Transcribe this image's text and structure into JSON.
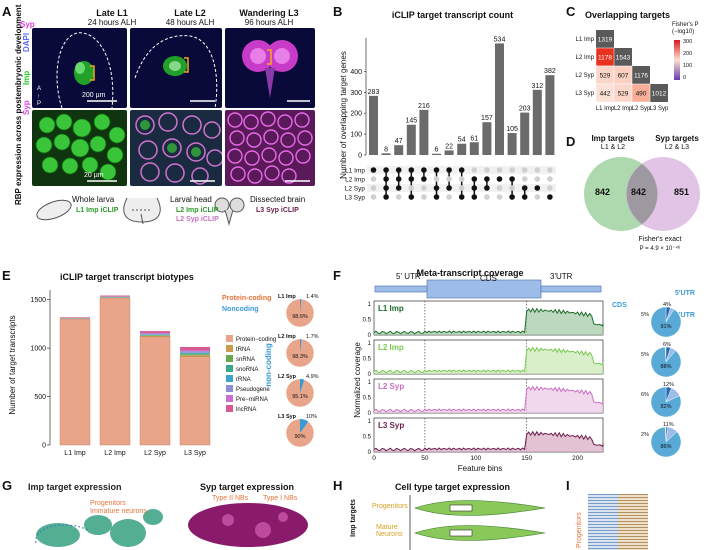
{
  "panel_letters": {
    "a": "A",
    "b": "B",
    "c": "C",
    "d": "D",
    "e": "E",
    "f": "F",
    "g": "G",
    "h": "H",
    "i": "I"
  },
  "panelA": {
    "side_label": "RBP expression across postembryonic development",
    "col_titles": [
      {
        "t": "Late L1",
        "s": "24 hours ALH"
      },
      {
        "t": "Late L2",
        "s": "48 hours ALH"
      },
      {
        "t": "Wandering L3",
        "s": "96 hours ALH"
      }
    ],
    "row_labels": {
      "imp": "Imp",
      "syp": "Syp",
      "dapi": "DAPI"
    },
    "axis": {
      "a": "A",
      "p": "P"
    },
    "scale1": "200 µm",
    "scale2": "20 µm",
    "schem": [
      {
        "name": "Whole larva",
        "iclip": [
          "L1 Imp iCLIP"
        ]
      },
      {
        "name": "Larval head",
        "iclip": [
          "L2 Imp iCLIP",
          "L2 Syp iCLIP"
        ]
      },
      {
        "name": "Dissected brain",
        "iclip": [
          "L3 Syp iCLIP"
        ]
      }
    ]
  },
  "panelB": {
    "title": "iCLIP target transcript count",
    "ylabel": "Number of overlapping target genes",
    "set_labels": [
      "L1 Imp",
      "L2 Imp",
      "L2 Syp",
      "L3 Syp"
    ],
    "chart_data": {
      "type": "bar",
      "title": "iCLIP target transcript count",
      "ylabel": "Number of overlapping target genes",
      "ylim": [
        0,
        560
      ],
      "yticks": [
        0,
        100,
        200,
        300,
        400
      ],
      "values": [
        283,
        8,
        47,
        145,
        216,
        6,
        22,
        54,
        61,
        157,
        534,
        105,
        203,
        312,
        382
      ],
      "membership": [
        [
          0
        ],
        [
          0,
          1,
          2,
          3
        ],
        [
          0,
          1,
          2
        ],
        [
          0,
          1,
          3
        ],
        [
          0,
          1
        ],
        [
          0,
          2,
          3
        ],
        [
          0,
          2
        ],
        [
          0,
          3
        ],
        [
          1,
          2,
          3
        ],
        [
          1,
          2
        ],
        [
          1
        ],
        [
          1,
          3
        ],
        [
          2,
          3
        ],
        [
          2
        ],
        [
          3
        ]
      ]
    }
  },
  "panelC": {
    "title": "Overlapping targets",
    "legend_title": "Fisher's P",
    "legend_sub": "(−log10)",
    "legend_ticks": [
      "300",
      "200",
      "100",
      "0"
    ],
    "labels": [
      "L1 Imp",
      "L2 Imp",
      "L2 Syp",
      "L3 Syp"
    ],
    "chart_data": {
      "type": "heatmap",
      "diag": [
        1319,
        1543,
        1176,
        1012
      ],
      "lower": [
        [
          1,
          0,
          1178,
          "#e8321f"
        ],
        [
          2,
          0,
          529,
          "#fbd5c7"
        ],
        [
          2,
          1,
          607,
          "#fbd0c0"
        ],
        [
          3,
          0,
          442,
          "#fce1d6"
        ],
        [
          3,
          1,
          529,
          "#fbd5c7"
        ],
        [
          3,
          2,
          490,
          "#f8ae96"
        ]
      ]
    }
  },
  "panelD": {
    "left_title": "Imp targets",
    "left_sub": "L1 & L2",
    "right_title": "Syp targets",
    "right_sub": "L2 & L3",
    "values": [
      "842",
      "842",
      "851"
    ],
    "test": "Fisher's exact",
    "pval": "P = 4.9 × 10⁻⁴⁶",
    "chart_data": {
      "type": "venn",
      "left_only": 842,
      "both": 842,
      "right_only": 851
    }
  },
  "panelE": {
    "title": "iCLIP target transcript biotypes",
    "ylabel": "Number of target transcripts",
    "noncoding_label": "non-coding",
    "pie_labels": {
      "pc": "Protein-coding",
      "nc": "Noncoding"
    },
    "legend": [
      {
        "name": "Protein−coding",
        "color": "#e8a58a"
      },
      {
        "name": "tRNA",
        "color": "#c99a4a"
      },
      {
        "name": "snRNA",
        "color": "#6aa84f"
      },
      {
        "name": "snoRNA",
        "color": "#3aa88a"
      },
      {
        "name": "rRNA",
        "color": "#3aa5c8"
      },
      {
        "name": "Pseudogene",
        "color": "#8c8fd8"
      },
      {
        "name": "Pre−miRNA",
        "color": "#c86fd0"
      },
      {
        "name": "lncRNA",
        "color": "#d85a95"
      }
    ],
    "pies": [
      {
        "label": "L1 Imp",
        "nc": "1.4%",
        "pc": "98.6%",
        "nc_val": 1.4
      },
      {
        "label": "L2 Imp",
        "nc": "1.7%",
        "pc": "98.3%",
        "nc_val": 1.7
      },
      {
        "label": "L2 Syp",
        "nc": "4.9%",
        "pc": "95.1%",
        "nc_val": 4.9
      },
      {
        "label": "L3 Syp",
        "nc": "10%",
        "pc": "90%",
        "nc_val": 10
      }
    ],
    "chart_data": {
      "type": "bar",
      "categories": [
        "L1 Imp",
        "L2 Imp",
        "L2 Syp",
        "L3 Syp"
      ],
      "ylim": [
        0,
        1600
      ],
      "yticks": [
        0,
        500,
        1000,
        1500
      ],
      "totals": [
        1319,
        1543,
        1176,
        1012
      ],
      "noncoding": [
        18,
        26,
        58,
        101
      ]
    }
  },
  "panelF": {
    "title": "Meta-transcript coverage",
    "regions": {
      "utr5": "5' UTR",
      "cds": "CDS",
      "utr3": "3'UTR"
    },
    "xlabel": "Feature bins",
    "ylabel": "Normalized coverage",
    "pie_labels": {
      "cds": "CDS",
      "utr5": "5'UTR",
      "utr3": "3'UTR"
    },
    "tracks": [
      {
        "label": "L1 Imp",
        "color": "#1e6b2a",
        "fill": "#9fc8a2",
        "pie": [
          5,
          4,
          91
        ],
        "pie_text": [
          "5%",
          "4%",
          "91%"
        ]
      },
      {
        "label": "L2 Imp",
        "color": "#78c850",
        "fill": "#c9e8b4",
        "pie": [
          5,
          6,
          88
        ],
        "pie_text": [
          "5%",
          "6%",
          "88%"
        ]
      },
      {
        "label": "L2 Syp",
        "color": "#c86fc0",
        "fill": "#ebc7e6",
        "pie": [
          6,
          12,
          82
        ],
        "pie_text": [
          "6%",
          "12%",
          "82%"
        ]
      },
      {
        "label": "L3 Syp",
        "color": "#6a1d4a",
        "fill": "#d6a8c0",
        "pie": [
          2,
          11,
          86
        ],
        "pie_text": [
          "2%",
          "11%",
          "86%"
        ]
      }
    ],
    "chart_data": {
      "type": "line",
      "xlim": [
        0,
        225
      ],
      "xticks": [
        0,
        50,
        100,
        150,
        200
      ],
      "ylim": [
        0,
        1.1
      ],
      "yticks": [
        0,
        0.5,
        1
      ],
      "boundaries": [
        50,
        150
      ]
    }
  },
  "panelG": {
    "left_title": "Imp target expression",
    "right_title": "Syp target expression",
    "imp_anno": "Progenitors",
    "imp_anno2": "Immature neurons",
    "syp_anno1": "Type II NBs",
    "syp_anno2": "Type I NBs"
  },
  "panelH": {
    "title": "Cell type target expression",
    "ylabel": "Imp targets",
    "labels": [
      "Progenitors",
      "Mature\nNeurons"
    ]
  },
  "panelI": {
    "label": "Progenitors"
  }
}
